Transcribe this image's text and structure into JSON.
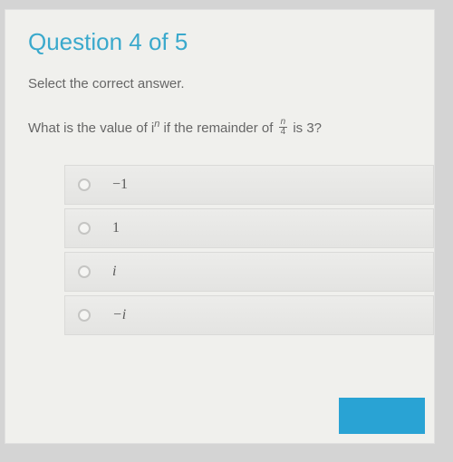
{
  "header": {
    "title": "Question 4 of 5",
    "title_color": "#3aa9cc",
    "title_fontsize": 26
  },
  "instruction": "Select the correct answer.",
  "question": {
    "prefix": "What is the value of ",
    "expr_base": "i",
    "expr_exponent": "n",
    "middle": " if the remainder of ",
    "fraction_num": "n",
    "fraction_den": "4",
    "suffix": " is 3?"
  },
  "options": [
    {
      "label": "−1",
      "italic": false,
      "selected": false
    },
    {
      "label": "1",
      "italic": false,
      "selected": false
    },
    {
      "label": "i",
      "italic": true,
      "selected": false
    },
    {
      "label": "−i",
      "italic": true,
      "selected": false
    }
  ],
  "styling": {
    "background_color": "#f0f0ed",
    "outer_background": "#d4d4d4",
    "text_color": "#666",
    "option_bg": "#e8e8e6",
    "option_text_color": "#5a5a5a",
    "radio_border": "#c5c5c3",
    "next_button_color": "#29a3d4"
  }
}
